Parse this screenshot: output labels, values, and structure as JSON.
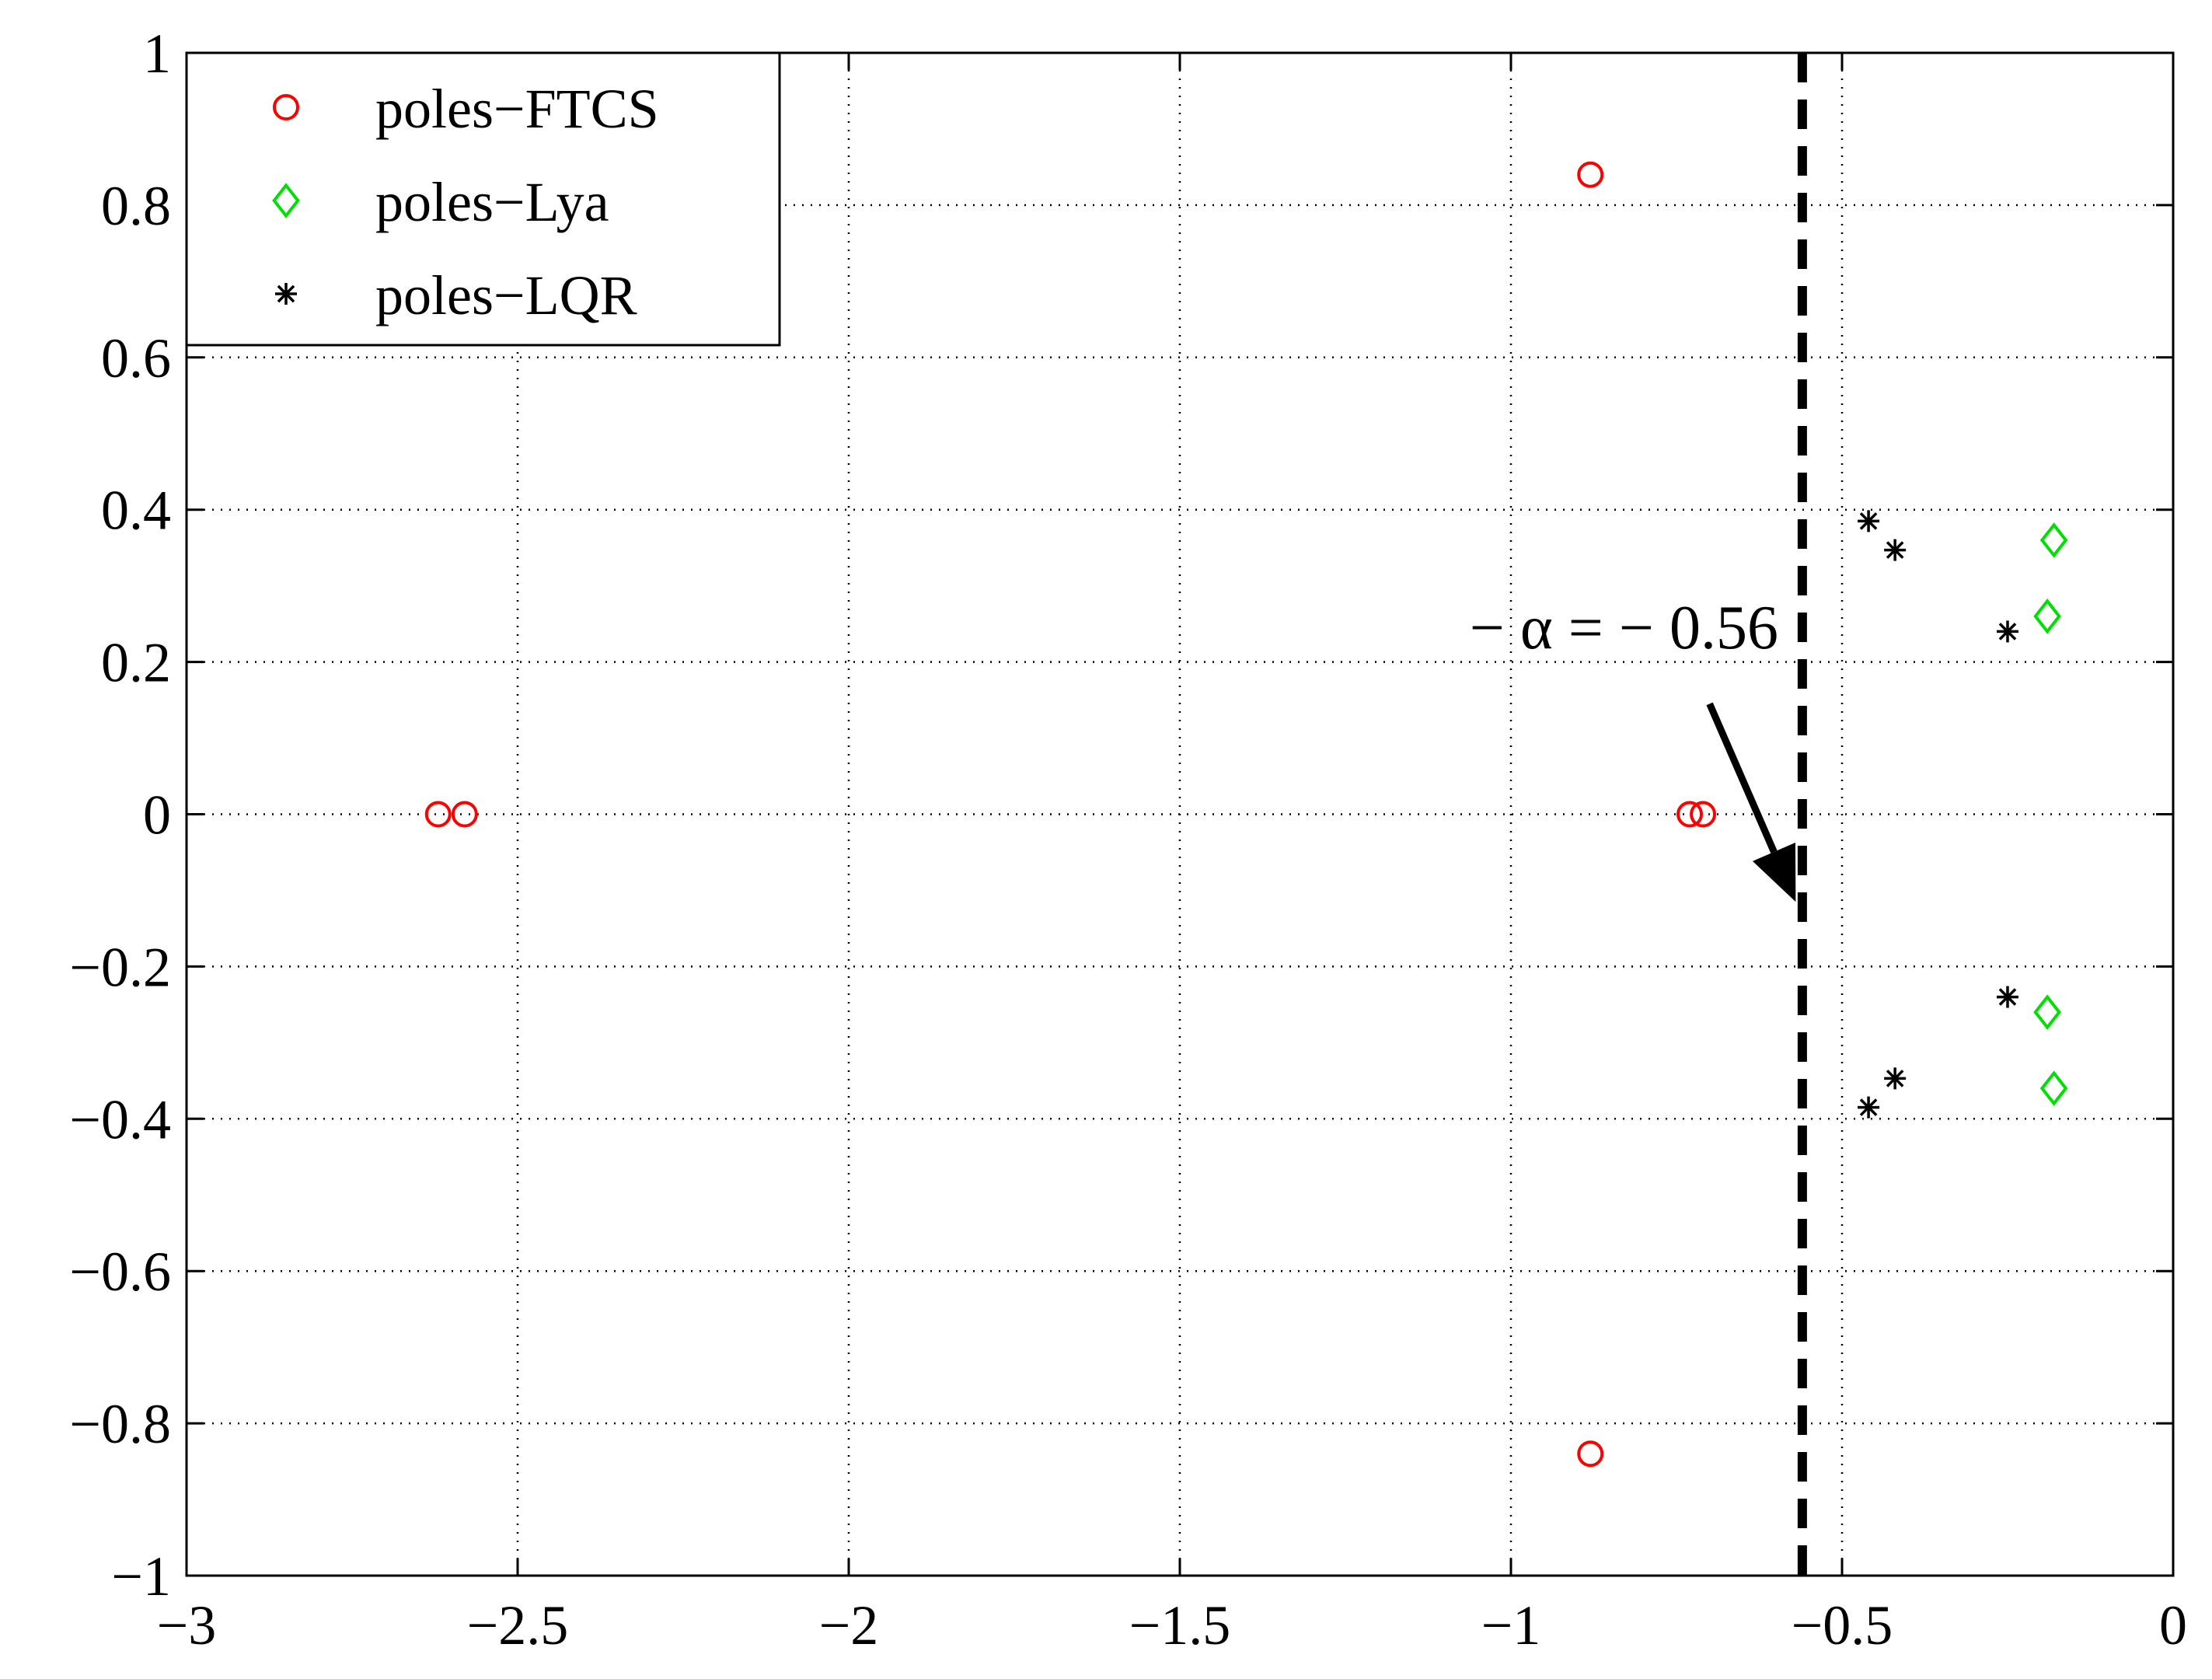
{
  "chart_data": {
    "type": "scatter",
    "title": "",
    "xlabel": "",
    "ylabel": "",
    "xlim": [
      -3,
      0
    ],
    "ylim": [
      -1,
      1
    ],
    "grid": true,
    "legend_position": "top-left",
    "x_ticks": [
      -3,
      -2.5,
      -2,
      -1.5,
      -1,
      -0.5,
      0
    ],
    "x_tick_labels": [
      "−3",
      "−2.5",
      "−2",
      "−1.5",
      "−1",
      "−0.5",
      "0"
    ],
    "y_ticks": [
      -1,
      -0.8,
      -0.6,
      -0.4,
      -0.2,
      0,
      0.2,
      0.4,
      0.6,
      0.8,
      1
    ],
    "y_tick_labels": [
      "−1",
      "−0.8",
      "−0.6",
      "−0.4",
      "−0.2",
      "0",
      "0.2",
      "0.4",
      "0.6",
      "0.8",
      "1"
    ],
    "series": [
      {
        "name": "poles−FTCS",
        "marker": "circle",
        "color": "#ff0000",
        "points": [
          [
            -2.62,
            0
          ],
          [
            -2.58,
            0
          ],
          [
            -0.88,
            0.84
          ],
          [
            -0.88,
            -0.84
          ],
          [
            -0.73,
            0
          ],
          [
            -0.71,
            0
          ]
        ]
      },
      {
        "name": "poles−Lya",
        "marker": "diamond",
        "color": "#00e000",
        "points": [
          [
            -0.18,
            0.36
          ],
          [
            -0.19,
            0.26
          ],
          [
            -0.19,
            -0.26
          ],
          [
            -0.18,
            -0.36
          ]
        ]
      },
      {
        "name": "poles−LQR",
        "marker": "star",
        "color": "#000000",
        "points": [
          [
            -0.46,
            0.385
          ],
          [
            -0.42,
            0.347
          ],
          [
            -0.25,
            0.24
          ],
          [
            -0.25,
            -0.24
          ],
          [
            -0.42,
            -0.347
          ],
          [
            -0.46,
            -0.385
          ]
        ]
      }
    ],
    "reference_line": {
      "x": -0.56,
      "style": "dashed",
      "color": "#000000"
    },
    "annotation": {
      "text": "− α = − 0.56",
      "arrow_from": [
        -0.7,
        0.145
      ],
      "arrow_to": [
        -0.57,
        -0.115
      ]
    }
  }
}
